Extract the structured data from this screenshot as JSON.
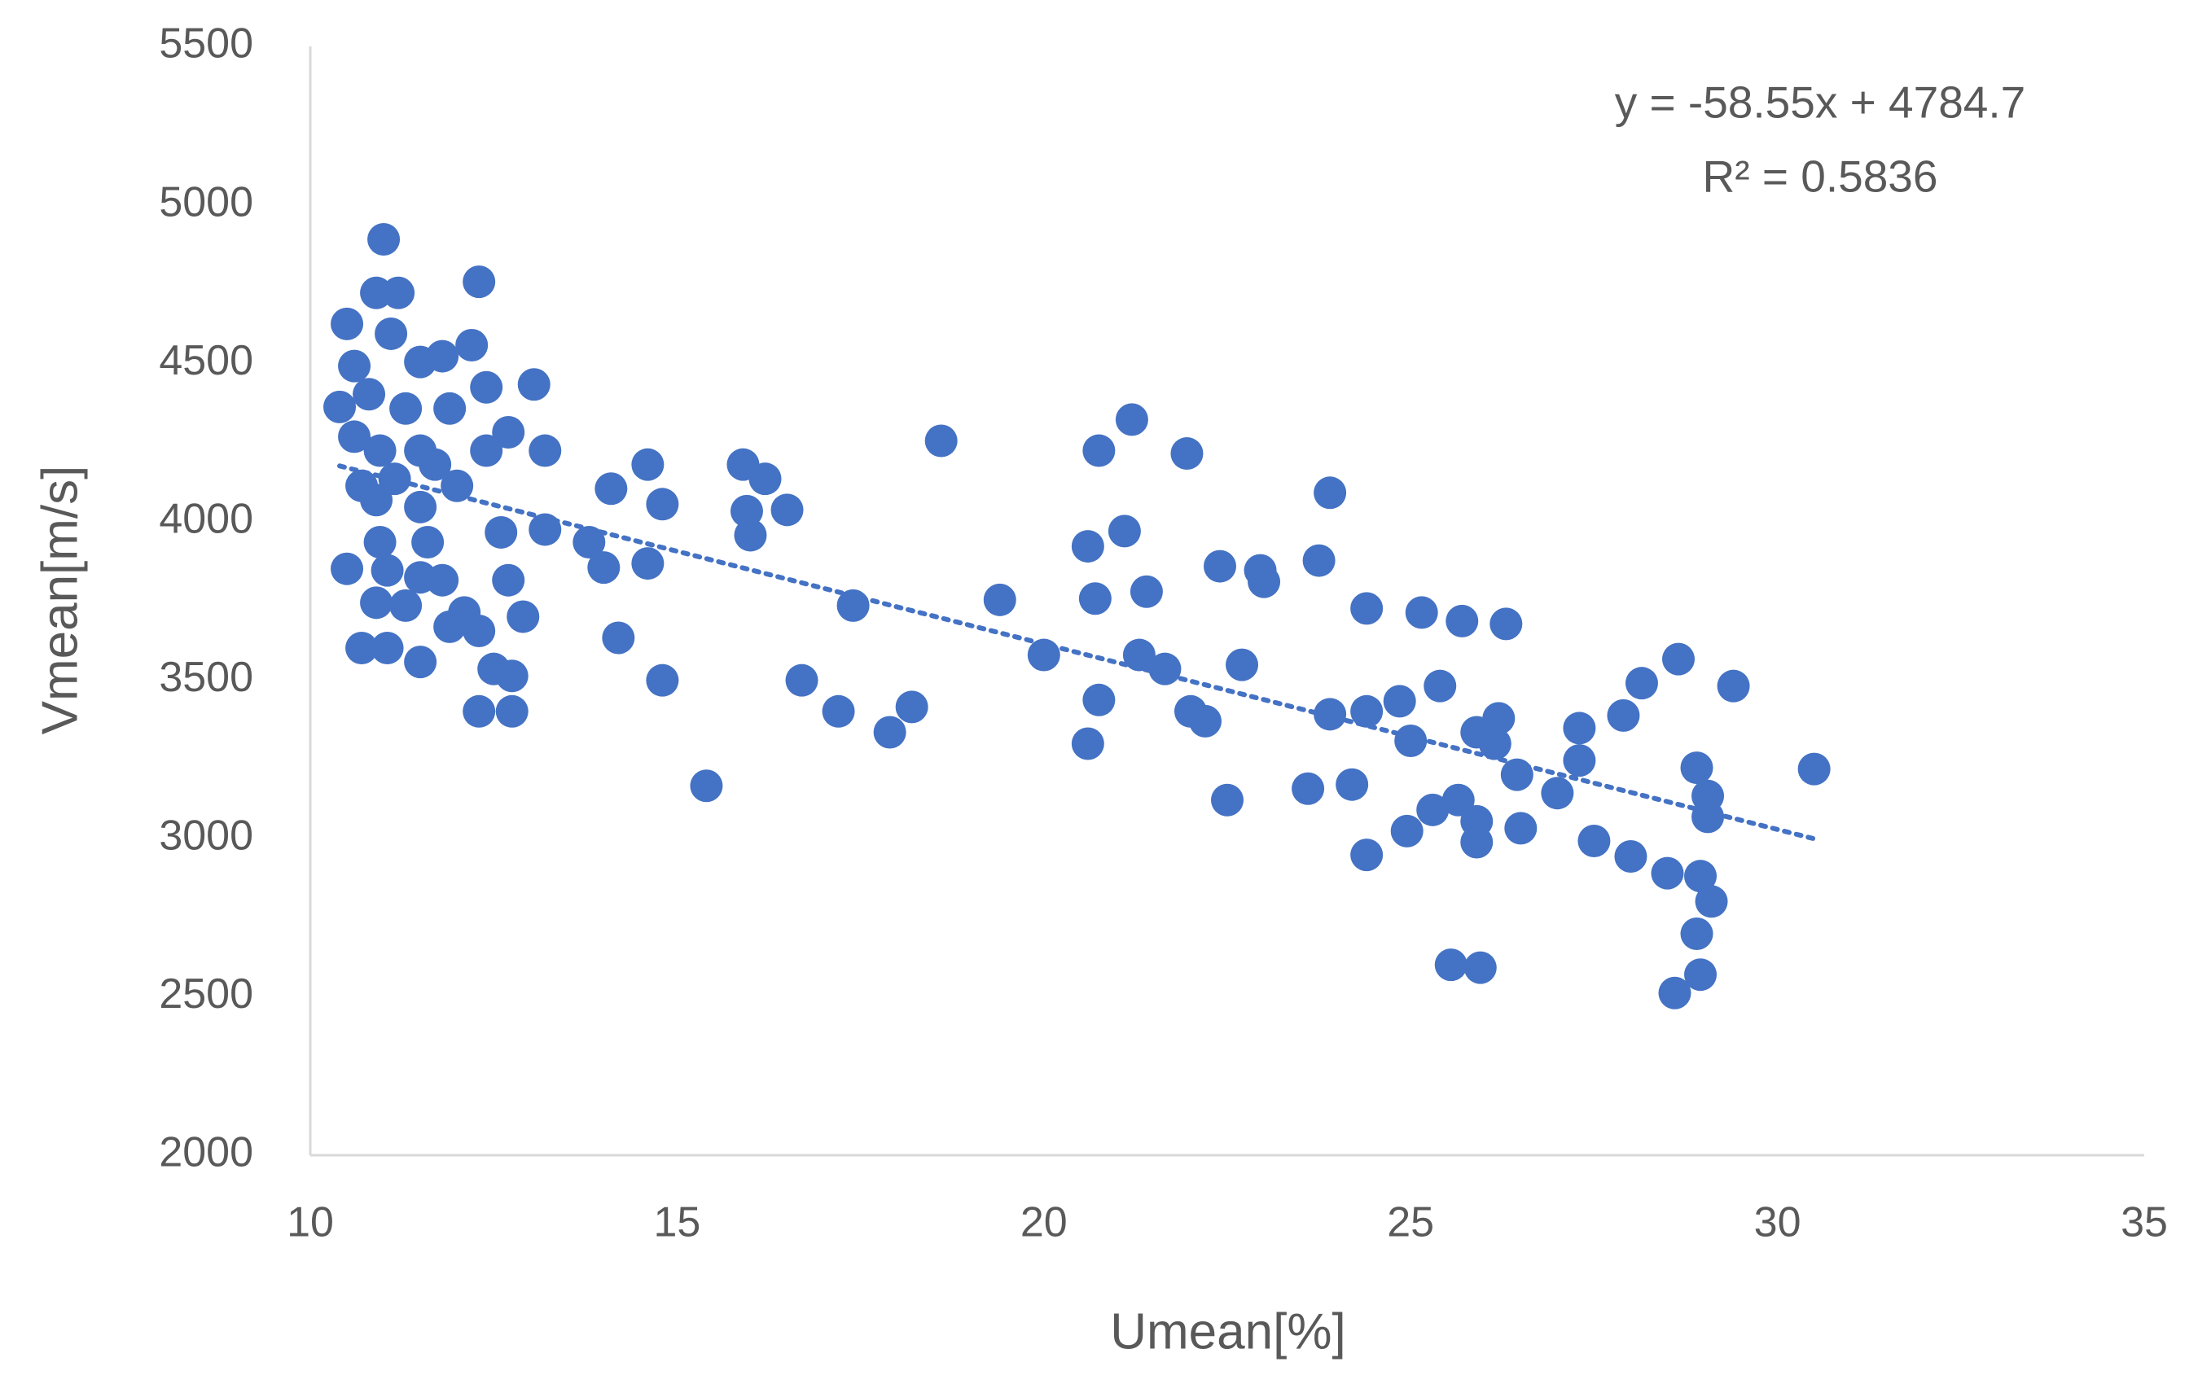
{
  "chart_data": {
    "type": "scatter",
    "x_label": "Umean[%]",
    "y_label": "Vmean[m/s]",
    "annotation": [
      "y = -58.55x + 4784.7",
      "R² = 0.5836"
    ],
    "trendline": {
      "slope": -58.55,
      "intercept": 4784.7
    },
    "xlim": [
      10,
      35
    ],
    "xticks": [
      10,
      15,
      20,
      25,
      30,
      35
    ],
    "ylim": [
      2000,
      5500
    ],
    "yticks": [
      2000,
      2500,
      3000,
      3500,
      4000,
      4500,
      5000,
      5500
    ],
    "grid": false,
    "series": [
      {
        "color": "#4472c4",
        "x": [
          11.0,
          10.9,
          11.2,
          10.5,
          11.1,
          10.6,
          11.5,
          11.8,
          12.2,
          12.3,
          12.4,
          13.05,
          10.4,
          10.8,
          11.3,
          11.9,
          12.7,
          10.6,
          10.95,
          11.5,
          12.4,
          13.2,
          10.7,
          11.15,
          11.7,
          12.0,
          10.9,
          11.5,
          12.6,
          13.2,
          10.95,
          11.6,
          10.5,
          11.05,
          11.5,
          11.8,
          12.7,
          10.9,
          11.3,
          12.1,
          12.9,
          11.9,
          12.3,
          10.7,
          11.05,
          11.5,
          12.5,
          12.75,
          12.3,
          12.75,
          14.1,
          13.8,
          14.0,
          14.6,
          14.8,
          14.6,
          14.2,
          14.8,
          15.4,
          15.9,
          16.2,
          15.95,
          16.0,
          16.5,
          17.4,
          16.7,
          17.2,
          17.9,
          18.2,
          18.6,
          19.4,
          20.0,
          20.6,
          20.75,
          21.2,
          21.1,
          20.7,
          21.4,
          20.75,
          20.6,
          21.3,
          21.65,
          21.95,
          22.0,
          22.2,
          22.4,
          22.95,
          23.0,
          22.7,
          22.5,
          23.75,
          23.9,
          23.9,
          23.6,
          24.2,
          24.4,
          24.4,
          24.85,
          25.0,
          24.4,
          24.95,
          25.15,
          25.7,
          25.4,
          25.3,
          25.65,
          25.9,
          25.9,
          25.9,
          26.2,
          26.15,
          26.3,
          26.45,
          26.5,
          25.55,
          25.95,
          27.0,
          27.3,
          27.3,
          27.5,
          27.9,
          28.15,
          28.0,
          28.5,
          28.65,
          28.9,
          29.05,
          29.05,
          28.95,
          29.1,
          28.9,
          28.95,
          28.6,
          29.4,
          30.5
        ],
        "values": [
          4891,
          4722,
          4722,
          4624,
          4593,
          4491,
          4504,
          4522,
          4557,
          4757,
          4424,
          4433,
          4362,
          4402,
          4357,
          4357,
          4282,
          4268,
          4224,
          4224,
          4224,
          4224,
          4113,
          4135,
          4180,
          4113,
          4068,
          4046,
          3966,
          3975,
          3935,
          3935,
          3851,
          3846,
          3824,
          3815,
          3815,
          3744,
          3735,
          3713,
          3700,
          3668,
          3655,
          3601,
          3601,
          3557,
          3535,
          3513,
          3401,
          3401,
          4104,
          3935,
          3855,
          4180,
          4055,
          3868,
          3633,
          3499,
          3166,
          4180,
          4135,
          4033,
          3957,
          4037,
          3735,
          3499,
          3401,
          3335,
          3415,
          4255,
          3753,
          3579,
          3922,
          4224,
          4322,
          3970,
          3757,
          3779,
          3437,
          3299,
          3579,
          3535,
          4215,
          3401,
          3370,
          3859,
          3846,
          3810,
          3548,
          3121,
          3877,
          4091,
          3392,
          3157,
          3170,
          3726,
          3401,
          3433,
          3308,
          2948,
          3023,
          3713,
          3686,
          3481,
          3090,
          3121,
          3054,
          2988,
          3335,
          3379,
          3299,
          3677,
          3201,
          3032,
          2601,
          2592,
          3143,
          3348,
          3246,
          2992,
          3388,
          3490,
          2943,
          2890,
          3566,
          3223,
          3134,
          3068,
          2881,
          2801,
          2699,
          2570,
          2512,
          3481,
          3219
        ]
      }
    ]
  }
}
